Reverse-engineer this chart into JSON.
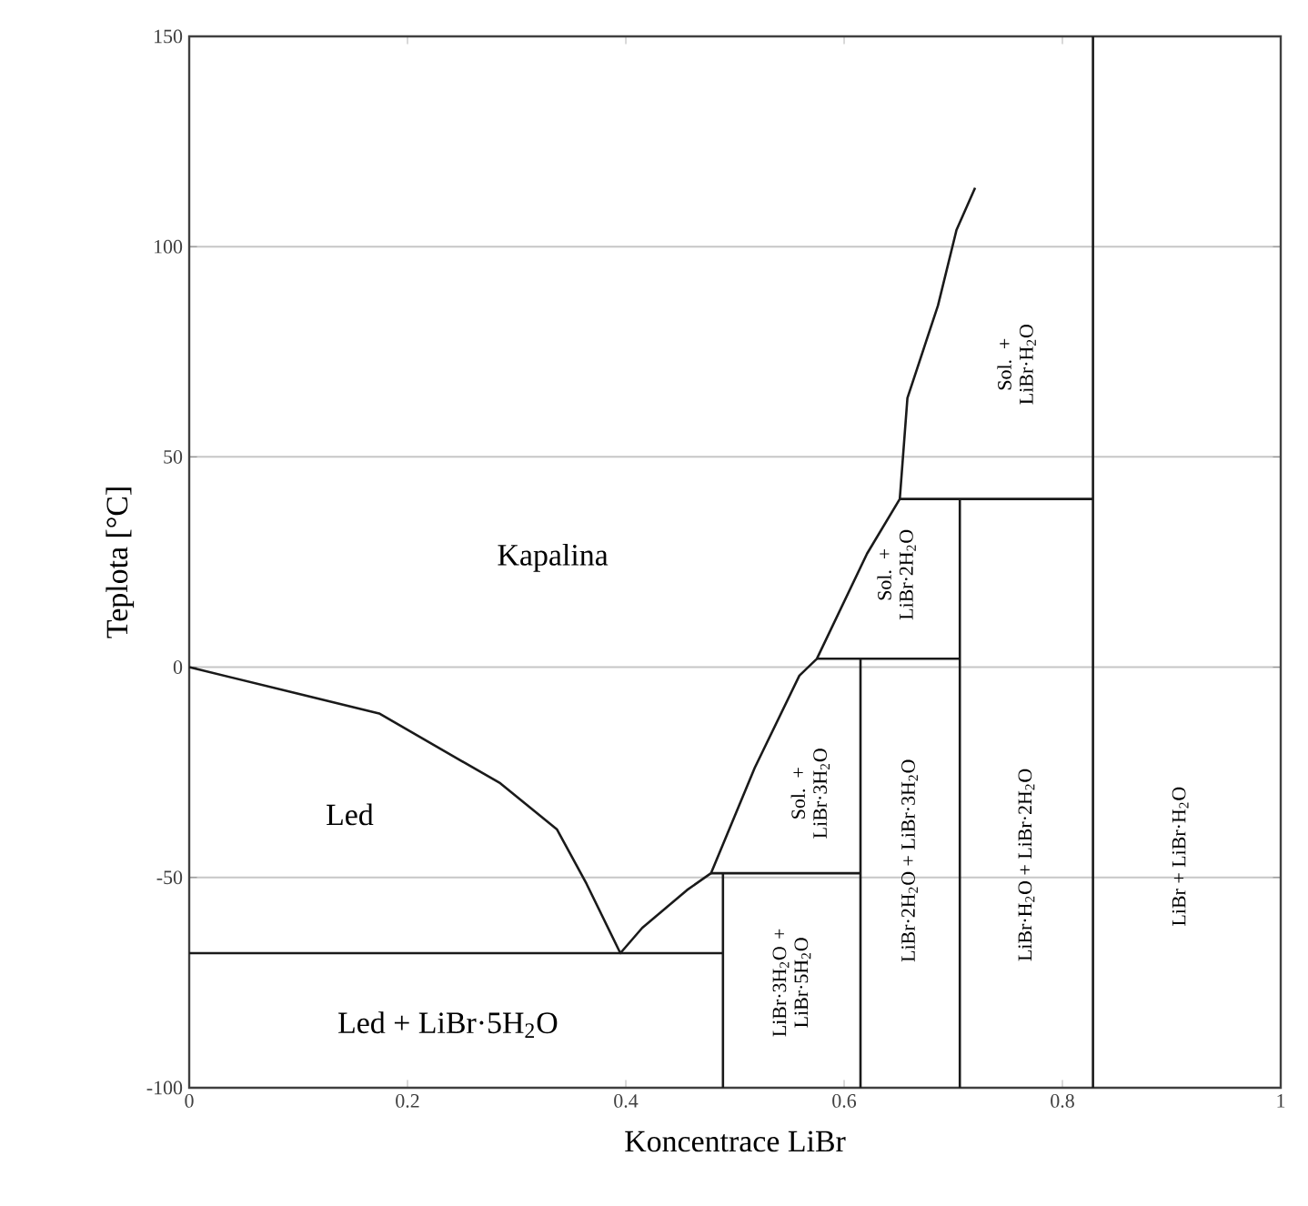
{
  "chart_data": {
    "type": "line",
    "xlabel": "Koncentrace LiBr",
    "ylabel": "Teplota [°C]",
    "xlim": [
      0,
      1
    ],
    "ylim": [
      -100,
      150
    ],
    "xticks": [
      0,
      0.2,
      0.4,
      0.6,
      0.8,
      1
    ],
    "yticks": [
      -100,
      -50,
      0,
      50,
      100,
      150
    ],
    "grid": "y",
    "color": "#1a1a1a",
    "series": [
      {
        "x": [
          0,
          0.174,
          0.285,
          0.337,
          0.364,
          0.395,
          0.415,
          0.456,
          0.478,
          0.518,
          0.559,
          0.575,
          0.621,
          0.651,
          0.658,
          0.686,
          0.703,
          0.72
        ],
        "values": [
          0,
          -11,
          -27.6,
          -38.6,
          -51.5,
          -68,
          -62,
          -53,
          -49,
          -24,
          -2,
          2,
          27,
          40,
          64,
          86,
          104,
          114
        ]
      },
      {
        "x": [
          0,
          0.489
        ],
        "values": [
          -68,
          -68
        ]
      },
      {
        "x": [
          0.489,
          0.489
        ],
        "values": [
          -100,
          -49
        ]
      },
      {
        "x": [
          0.478,
          0.615
        ],
        "values": [
          -49,
          -49
        ]
      },
      {
        "x": [
          0.615,
          0.615
        ],
        "values": [
          -100,
          2
        ]
      },
      {
        "x": [
          0.575,
          0.706
        ],
        "values": [
          2,
          2
        ]
      },
      {
        "x": [
          0.706,
          0.706
        ],
        "values": [
          -100,
          40
        ]
      },
      {
        "x": [
          0.651,
          0.828
        ],
        "values": [
          40,
          40
        ]
      },
      {
        "x": [
          0.828,
          0.828
        ],
        "values": [
          -100,
          150
        ]
      }
    ],
    "annotations": [
      "Kapalina",
      "Led",
      "Led + LiBr·5H$_{2}$O",
      "Sol. + LiBr·H$_{2}$O",
      "Sol. + LiBr·2H$_{2}$O",
      "Sol. + LiBr·3H$_{2}$O",
      "LiBr·3H$_{2}$O + LiBr·5H$_{2}$O",
      "LiBr·2H$_{2}$O + LiBr·3H$_{2}$O",
      "LiBr·H$_{2}$O + LiBr·2H$_{2}$O",
      "LiBr + LiBr·H$_{2}$O"
    ]
  }
}
